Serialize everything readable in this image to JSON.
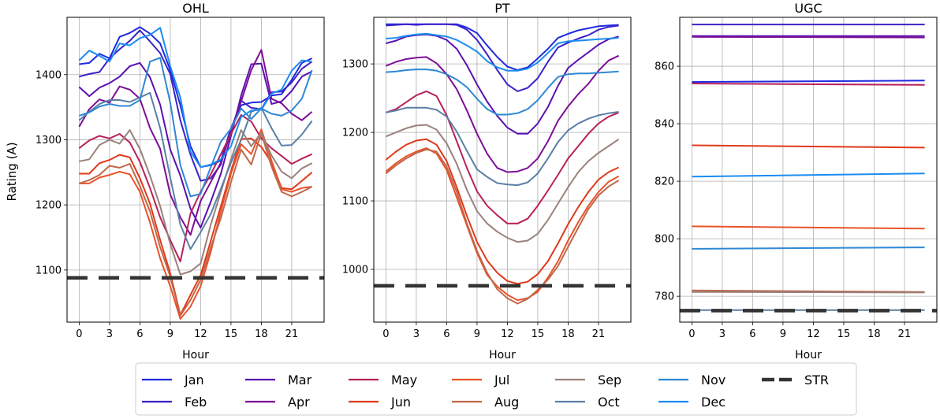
{
  "figure": {
    "ylabel": "Rating (A)",
    "xlabel": "Hour"
  },
  "legend": {
    "columns": 7,
    "entries": [
      {
        "label": "Jan",
        "color": "#1f2ae0",
        "dashed": false
      },
      {
        "label": "Feb",
        "color": "#3a22c8",
        "dashed": false
      },
      {
        "label": "Mar",
        "color": "#5a12b0",
        "dashed": false
      },
      {
        "label": "Apr",
        "color": "#7d0e96",
        "dashed": false
      },
      {
        "label": "May",
        "color": "#b8205a",
        "dashed": false
      },
      {
        "label": "Jun",
        "color": "#e0391a",
        "dashed": false
      },
      {
        "label": "Jul",
        "color": "#e8542a",
        "dashed": false
      },
      {
        "label": "Aug",
        "color": "#c0674a",
        "dashed": false
      },
      {
        "label": "Sep",
        "color": "#9a827c",
        "dashed": false
      },
      {
        "label": "Oct",
        "color": "#5a7fa6",
        "dashed": false
      },
      {
        "label": "Nov",
        "color": "#2f88d4",
        "dashed": false
      },
      {
        "label": "Dec",
        "color": "#1a8cf2",
        "dashed": false
      },
      {
        "label": "STR",
        "color": "#333333",
        "dashed": true
      }
    ]
  },
  "chart_data": [
    {
      "type": "line",
      "title": "OHL",
      "xlabel": "Hour",
      "ylabel": "Rating (A)",
      "xlim": [
        -1.2,
        24.2
      ],
      "ylim": [
        1020,
        1488
      ],
      "xticks": [
        0,
        3,
        6,
        9,
        12,
        15,
        18,
        21
      ],
      "yticks": [
        1100,
        1200,
        1300,
        1400
      ],
      "grid": true,
      "str": 1088,
      "x": [
        0,
        1,
        2,
        3,
        4,
        5,
        6,
        7,
        8,
        9,
        10,
        11,
        12,
        13,
        14,
        15,
        16,
        17,
        18,
        19,
        20,
        21,
        22,
        23
      ],
      "series": [
        {
          "name": "Jan",
          "values": [
            1416,
            1418,
            1432,
            1425,
            1458,
            1464,
            1473,
            1463,
            1448,
            1407,
            1353,
            1290,
            1258,
            1261,
            1268,
            1318,
            1353,
            1357,
            1358,
            1368,
            1370,
            1392,
            1418,
            1425
          ]
        },
        {
          "name": "Feb",
          "values": [
            1397,
            1401,
            1404,
            1425,
            1439,
            1452,
            1468,
            1451,
            1433,
            1401,
            1330,
            1277,
            1237,
            1241,
            1262,
            1315,
            1360,
            1349,
            1347,
            1373,
            1374,
            1388,
            1409,
            1420
          ]
        },
        {
          "name": "Mar",
          "values": [
            1381,
            1367,
            1380,
            1387,
            1397,
            1413,
            1418,
            1396,
            1354,
            1285,
            1245,
            1194,
            1165,
            1205,
            1248,
            1306,
            1368,
            1416,
            1417,
            1355,
            1359,
            1375,
            1397,
            1405
          ]
        },
        {
          "name": "Apr",
          "values": [
            1320,
            1347,
            1362,
            1357,
            1382,
            1377,
            1363,
            1318,
            1286,
            1216,
            1181,
            1154,
            1206,
            1235,
            1265,
            1312,
            1359,
            1407,
            1438,
            1363,
            1356,
            1340,
            1330,
            1343
          ]
        },
        {
          "name": "May",
          "values": [
            1287,
            1299,
            1306,
            1302,
            1309,
            1296,
            1266,
            1226,
            1181,
            1146,
            1113,
            1187,
            1220,
            1247,
            1278,
            1309,
            1338,
            1328,
            1302,
            1287,
            1275,
            1263,
            1271,
            1278
          ]
        },
        {
          "name": "Jun",
          "values": [
            1248,
            1248,
            1264,
            1269,
            1277,
            1273,
            1241,
            1202,
            1146,
            1095,
            1031,
            1062,
            1092,
            1145,
            1198,
            1252,
            1301,
            1302,
            1289,
            1265,
            1226,
            1224,
            1237,
            1250
          ]
        },
        {
          "name": "Jul",
          "values": [
            1233,
            1233,
            1242,
            1246,
            1251,
            1247,
            1220,
            1173,
            1118,
            1075,
            1025,
            1044,
            1075,
            1128,
            1190,
            1248,
            1293,
            1278,
            1316,
            1268,
            1224,
            1220,
            1226,
            1228
          ]
        },
        {
          "name": "Aug",
          "values": [
            1233,
            1238,
            1246,
            1260,
            1257,
            1263,
            1229,
            1190,
            1135,
            1090,
            1030,
            1054,
            1085,
            1135,
            1180,
            1235,
            1285,
            1262,
            1310,
            1259,
            1220,
            1213,
            1220,
            1228
          ]
        },
        {
          "name": "Sep",
          "values": [
            1267,
            1270,
            1292,
            1300,
            1294,
            1315,
            1286,
            1245,
            1198,
            1140,
            1093,
            1098,
            1110,
            1170,
            1220,
            1270,
            1315,
            1290,
            1311,
            1276,
            1251,
            1241,
            1256,
            1264
          ]
        },
        {
          "name": "Oct",
          "values": [
            1330,
            1343,
            1355,
            1361,
            1361,
            1358,
            1365,
            1372,
            1318,
            1242,
            1170,
            1132,
            1158,
            1186,
            1225,
            1265,
            1300,
            1343,
            1349,
            1318,
            1291,
            1292,
            1308,
            1329
          ]
        },
        {
          "name": "Nov",
          "values": [
            1337,
            1342,
            1351,
            1355,
            1352,
            1352,
            1361,
            1420,
            1426,
            1357,
            1261,
            1213,
            1217,
            1258,
            1297,
            1317,
            1348,
            1332,
            1348,
            1340,
            1337,
            1345,
            1363,
            1407
          ]
        },
        {
          "name": "Dec",
          "values": [
            1422,
            1437,
            1429,
            1420,
            1448,
            1445,
            1456,
            1461,
            1472,
            1413,
            1365,
            1282,
            1258,
            1262,
            1270,
            1290,
            1335,
            1345,
            1346,
            1371,
            1377,
            1406,
            1422,
            1420
          ]
        }
      ]
    },
    {
      "type": "line",
      "title": "PT",
      "xlabel": "Hour",
      "ylabel": "",
      "xlim": [
        -1.2,
        24.2
      ],
      "ylim": [
        923,
        1368
      ],
      "xticks": [
        0,
        3,
        6,
        9,
        12,
        15,
        18,
        21
      ],
      "yticks": [
        1000,
        1100,
        1200,
        1300
      ],
      "grid": true,
      "str": 976,
      "x": [
        0,
        1,
        2,
        3,
        4,
        5,
        6,
        7,
        8,
        9,
        10,
        11,
        12,
        13,
        14,
        15,
        16,
        17,
        18,
        19,
        20,
        21,
        22,
        23
      ],
      "series": [
        {
          "name": "Jan",
          "values": [
            1358,
            1358,
            1358,
            1358,
            1358,
            1358,
            1358,
            1358,
            1353,
            1345,
            1327,
            1310,
            1296,
            1291,
            1295,
            1308,
            1322,
            1338,
            1344,
            1349,
            1352,
            1355,
            1356,
            1357
          ]
        },
        {
          "name": "Feb",
          "values": [
            1356,
            1357,
            1358,
            1357,
            1358,
            1358,
            1358,
            1357,
            1350,
            1335,
            1314,
            1291,
            1270,
            1260,
            1265,
            1279,
            1303,
            1324,
            1331,
            1337,
            1342,
            1350,
            1354,
            1356
          ]
        },
        {
          "name": "Mar",
          "values": [
            1330,
            1334,
            1340,
            1342,
            1343,
            1341,
            1335,
            1322,
            1298,
            1270,
            1245,
            1224,
            1207,
            1198,
            1198,
            1213,
            1237,
            1268,
            1294,
            1306,
            1317,
            1328,
            1336,
            1340
          ]
        },
        {
          "name": "Apr",
          "values": [
            1297,
            1303,
            1307,
            1309,
            1310,
            1301,
            1285,
            1263,
            1232,
            1198,
            1169,
            1148,
            1142,
            1143,
            1148,
            1162,
            1187,
            1217,
            1238,
            1256,
            1271,
            1290,
            1305,
            1312
          ]
        },
        {
          "name": "May",
          "values": [
            1229,
            1234,
            1244,
            1254,
            1260,
            1253,
            1225,
            1187,
            1148,
            1114,
            1093,
            1079,
            1067,
            1067,
            1074,
            1093,
            1115,
            1138,
            1162,
            1180,
            1198,
            1213,
            1223,
            1229
          ]
        },
        {
          "name": "Jun",
          "values": [
            1160,
            1172,
            1182,
            1188,
            1190,
            1182,
            1158,
            1120,
            1078,
            1040,
            1013,
            995,
            983,
            979,
            982,
            993,
            1012,
            1038,
            1066,
            1091,
            1113,
            1131,
            1142,
            1149
          ]
        },
        {
          "name": "Jul",
          "values": [
            1143,
            1155,
            1165,
            1172,
            1177,
            1169,
            1145,
            1105,
            1064,
            1024,
            992,
            975,
            963,
            955,
            958,
            967,
            988,
            1012,
            1042,
            1069,
            1093,
            1113,
            1128,
            1136
          ]
        },
        {
          "name": "Aug",
          "values": [
            1140,
            1152,
            1162,
            1170,
            1175,
            1172,
            1150,
            1113,
            1067,
            1027,
            995,
            971,
            958,
            950,
            957,
            970,
            985,
            1005,
            1033,
            1061,
            1088,
            1108,
            1121,
            1130
          ]
        },
        {
          "name": "Sep",
          "values": [
            1194,
            1200,
            1206,
            1210,
            1211,
            1204,
            1184,
            1154,
            1116,
            1085,
            1067,
            1055,
            1046,
            1040,
            1042,
            1052,
            1072,
            1096,
            1120,
            1142,
            1158,
            1170,
            1180,
            1190
          ]
        },
        {
          "name": "Oct",
          "values": [
            1229,
            1232,
            1236,
            1236,
            1236,
            1233,
            1223,
            1201,
            1173,
            1146,
            1135,
            1126,
            1124,
            1123,
            1127,
            1140,
            1162,
            1186,
            1203,
            1213,
            1220,
            1225,
            1228,
            1230
          ]
        },
        {
          "name": "Nov",
          "values": [
            1288,
            1289,
            1291,
            1292,
            1292,
            1290,
            1285,
            1277,
            1266,
            1249,
            1234,
            1226,
            1226,
            1228,
            1234,
            1247,
            1265,
            1281,
            1285,
            1286,
            1286,
            1287,
            1288,
            1289
          ]
        },
        {
          "name": "Dec",
          "values": [
            1337,
            1338,
            1341,
            1343,
            1344,
            1342,
            1340,
            1335,
            1327,
            1318,
            1304,
            1295,
            1290,
            1290,
            1293,
            1302,
            1316,
            1330,
            1333,
            1334,
            1335,
            1336,
            1337,
            1338
          ]
        }
      ]
    },
    {
      "type": "line",
      "title": "UGC",
      "xlabel": "Hour",
      "ylabel": "",
      "xlim": [
        -1.2,
        24.2
      ],
      "ylim": [
        771,
        877
      ],
      "xticks": [
        0,
        3,
        6,
        9,
        12,
        15,
        18,
        21
      ],
      "yticks": [
        780,
        800,
        820,
        840,
        860
      ],
      "grid": true,
      "str": 775,
      "x": [
        0,
        23
      ],
      "series": [
        {
          "name": "Jan",
          "values": [
            854.5,
            855.0
          ]
        },
        {
          "name": "Feb",
          "values": [
            874.5,
            874.5
          ]
        },
        {
          "name": "Mar",
          "values": [
            870.5,
            870.5
          ]
        },
        {
          "name": "Apr",
          "values": [
            870.2,
            870.0
          ]
        },
        {
          "name": "May",
          "values": [
            854.0,
            853.5
          ]
        },
        {
          "name": "Jun",
          "values": [
            832.5,
            831.7
          ]
        },
        {
          "name": "Jul",
          "values": [
            804.3,
            803.5
          ]
        },
        {
          "name": "Aug",
          "values": [
            782.0,
            781.5
          ]
        },
        {
          "name": "Sep",
          "values": [
            781.5,
            781.3
          ]
        },
        {
          "name": "Oct",
          "values": [
            775.2,
            775.2
          ]
        },
        {
          "name": "Nov",
          "values": [
            796.5,
            797.0
          ]
        },
        {
          "name": "Dec",
          "values": [
            821.6,
            822.7
          ]
        }
      ]
    }
  ]
}
